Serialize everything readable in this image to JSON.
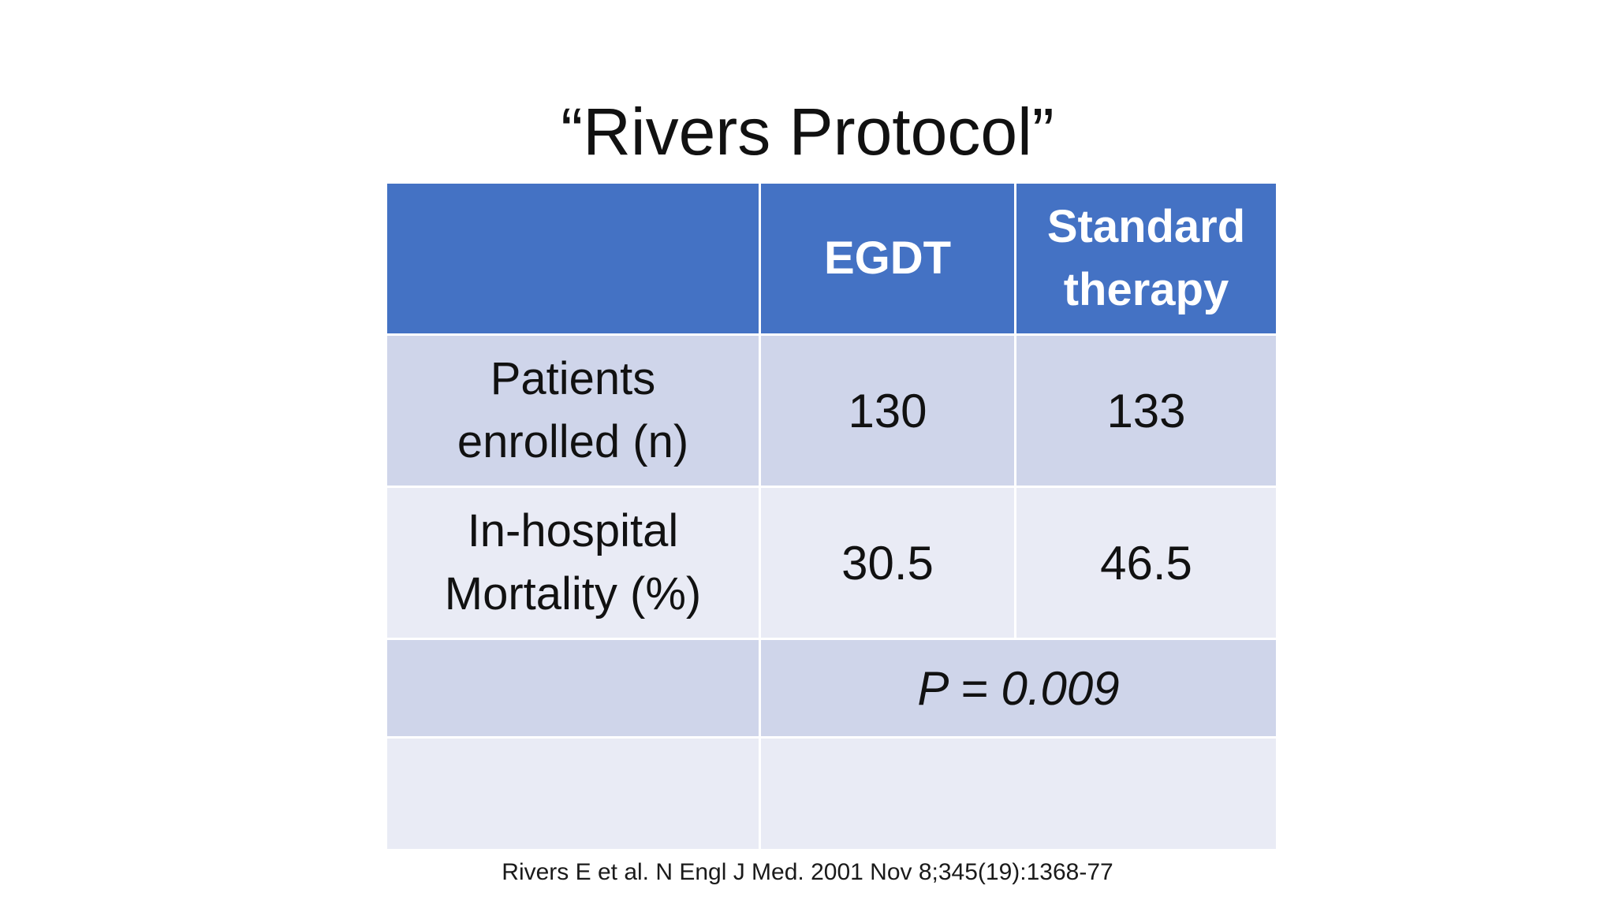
{
  "slide": {
    "title": "“Rivers Protocol”",
    "citation": "Rivers E et al. N Engl J Med. 2001 Nov 8;345(19):1368-77"
  },
  "table": {
    "headers": {
      "corner": "",
      "col1": "EGDT",
      "col2_line1": "Standard",
      "col2_line2": "therapy"
    },
    "rows": [
      {
        "label_line1": "Patients",
        "label_line2": "enrolled (n)",
        "egdt": "130",
        "standard": "133"
      },
      {
        "label_line1": "In-hospital",
        "label_line2": "Mortality (%)",
        "egdt": "30.5",
        "standard": "46.5"
      }
    ],
    "p_value": "P = 0.009"
  },
  "colors": {
    "header_bg": "#4472c4",
    "band_dark": "#cfd5ea",
    "band_light": "#e9ebf5"
  }
}
